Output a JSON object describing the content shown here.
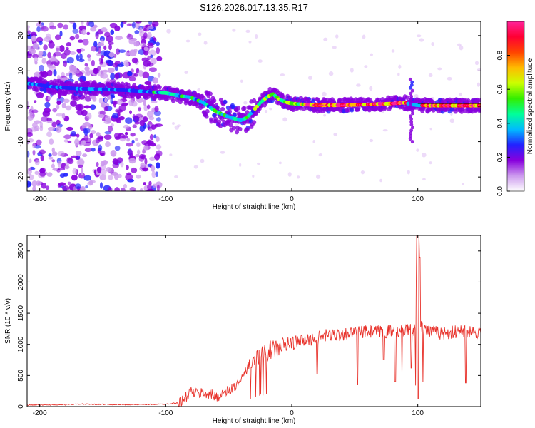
{
  "chart_data": [
    {
      "type": "heatmap",
      "title": "S126.2026.017.13.35.R17",
      "xlabel": "Height of straight line (km)",
      "ylabel": "Frequency (Hz)",
      "xlim": [
        -210,
        150
      ],
      "ylim": [
        -24,
        24
      ],
      "x_ticks": [
        -200,
        -100,
        0,
        100
      ],
      "x_tick_labels": [
        "-200",
        "-100",
        "0",
        "100"
      ],
      "y_ticks": [
        20,
        10,
        0,
        -10,
        -20
      ],
      "y_tick_labels": [
        "20",
        "10",
        "0",
        "-10",
        "-20"
      ],
      "ridge": {
        "x": [
          -210,
          -200,
          -190,
          -170,
          -150,
          -130,
          -110,
          -100,
          -90,
          -80,
          -70,
          -60,
          -50,
          -45,
          -40,
          -35,
          -30,
          -25,
          -20,
          -15,
          -10,
          -5,
          0,
          10,
          20,
          40,
          60,
          80,
          90,
          95,
          100,
          110,
          130,
          150
        ],
        "y": [
          6.5,
          6.0,
          5.5,
          5.0,
          4.8,
          4.5,
          4.0,
          3.8,
          3.0,
          2.5,
          1.0,
          -1.5,
          -3.0,
          -3.5,
          -4.0,
          -3.0,
          -1.0,
          1.0,
          2.5,
          3.5,
          2.0,
          1.2,
          0.8,
          0.5,
          0.3,
          0.3,
          0.5,
          0.8,
          1.0,
          0.5,
          0.3,
          0.2,
          0.2,
          0.2
        ]
      },
      "colorbar": {
        "label": "Normalized spectral amplitude",
        "range": [
          0.0,
          1.0
        ],
        "ticks": [
          0.0,
          0.2,
          0.4,
          0.6,
          0.8
        ],
        "tick_labels": [
          "0.0",
          "0.2",
          "0.4",
          "0.6",
          "0.8"
        ],
        "colors": [
          "#ffffff",
          "#cc99ee",
          "#8800dd",
          "#2222ff",
          "#00bbff",
          "#00ff99",
          "#33ee00",
          "#ccff00",
          "#ffbb00",
          "#ff4400",
          "#ff0033",
          "#ff2299"
        ]
      }
    },
    {
      "type": "line",
      "xlabel": "Height of straight line (km)",
      "ylabel": "SNR (10 * v/v)",
      "xlim": [
        -210,
        150
      ],
      "ylim": [
        0,
        2750
      ],
      "x_ticks": [
        -200,
        -100,
        0,
        100
      ],
      "x_tick_labels": [
        "-200",
        "-100",
        "0",
        "100"
      ],
      "y_ticks": [
        0,
        500,
        1000,
        1500,
        2000,
        2500
      ],
      "y_tick_labels": [
        "0",
        "500",
        "1000",
        "1500",
        "2000",
        "2500"
      ],
      "color": "#e8322b",
      "series": [
        {
          "name": "SNR",
          "x": [
            -210,
            -180,
            -170,
            -150,
            -130,
            -110,
            -100,
            -90,
            -85,
            -80,
            -75,
            -70,
            -60,
            -50,
            -40,
            -35,
            -30,
            -25,
            -20,
            -10,
            0,
            10,
            20,
            30,
            40,
            50,
            60,
            70,
            80,
            90,
            95,
            98,
            100,
            102,
            105,
            110,
            120,
            130,
            140,
            150
          ],
          "y": [
            25,
            30,
            40,
            35,
            30,
            35,
            40,
            60,
            120,
            250,
            200,
            230,
            160,
            250,
            400,
            650,
            750,
            820,
            880,
            950,
            1020,
            1060,
            1100,
            1150,
            1170,
            1180,
            1200,
            1200,
            1210,
            1220,
            1230,
            1250,
            2750,
            1350,
            1250,
            1200,
            1180,
            1200,
            1220,
            1200
          ],
          "dips": [
            {
              "x": 20,
              "y": 520
            },
            {
              "x": 52,
              "y": 350
            },
            {
              "x": 73,
              "y": 750
            },
            {
              "x": 82,
              "y": 400
            },
            {
              "x": 95,
              "y": 620
            },
            {
              "x": 100,
              "y": 120
            },
            {
              "x": 138,
              "y": 380
            }
          ]
        }
      ]
    }
  ]
}
